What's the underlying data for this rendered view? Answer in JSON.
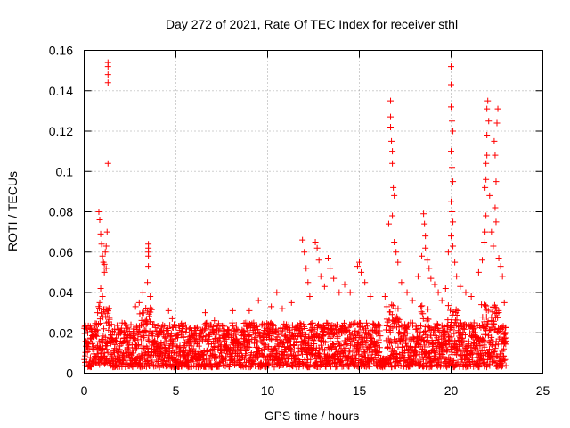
{
  "chart_data": {
    "type": "scatter",
    "title": "Day 272 of 2021, Rate Of TEC Index for receiver sthl",
    "xlabel": "GPS time / hours",
    "ylabel": "ROTI / TECUs",
    "xlim": [
      0,
      25
    ],
    "ylim": [
      0,
      0.16
    ],
    "xticks": [
      0,
      5,
      10,
      15,
      20,
      25
    ],
    "xtick_labels": [
      "0",
      "5",
      "10",
      "15",
      "20",
      "25"
    ],
    "yticks": [
      0,
      0.02,
      0.04,
      0.06,
      0.08,
      0.1,
      0.12,
      0.14,
      0.16
    ],
    "ytick_labels": [
      "0",
      "0.02",
      "0.04",
      "0.06",
      "0.08",
      "0.1",
      "0.12",
      "0.14",
      "0.16"
    ],
    "grid": true,
    "marker": "+",
    "color": "#ff0000",
    "data_range_x": [
      0,
      23
    ],
    "baseline_band": [
      0.003,
      0.025
    ],
    "series": [
      {
        "name": "ROTI",
        "points": [
          [
            0.8,
            0.08
          ],
          [
            0.85,
            0.076
          ],
          [
            0.9,
            0.069
          ],
          [
            0.95,
            0.064
          ],
          [
            1.0,
            0.058
          ],
          [
            1.05,
            0.055
          ],
          [
            1.1,
            0.054
          ],
          [
            1.15,
            0.06
          ],
          [
            1.2,
            0.063
          ],
          [
            1.25,
            0.07
          ],
          [
            1.3,
            0.154
          ],
          [
            1.3,
            0.152
          ],
          [
            1.3,
            0.148
          ],
          [
            1.3,
            0.144
          ],
          [
            1.3,
            0.104
          ],
          [
            1.2,
            0.052
          ],
          [
            1.1,
            0.05
          ],
          [
            0.9,
            0.042
          ],
          [
            1.0,
            0.038
          ],
          [
            0.85,
            0.035
          ],
          [
            3.2,
            0.04
          ],
          [
            3.0,
            0.035
          ],
          [
            3.5,
            0.064
          ],
          [
            3.5,
            0.062
          ],
          [
            3.5,
            0.06
          ],
          [
            3.5,
            0.058
          ],
          [
            3.5,
            0.053
          ],
          [
            3.45,
            0.045
          ],
          [
            3.6,
            0.038
          ],
          [
            2.8,
            0.033
          ],
          [
            4.6,
            0.031
          ],
          [
            4.8,
            0.027
          ],
          [
            6.6,
            0.03
          ],
          [
            7.1,
            0.026
          ],
          [
            8.1,
            0.031
          ],
          [
            9.0,
            0.031
          ],
          [
            9.5,
            0.036
          ],
          [
            10.2,
            0.033
          ],
          [
            10.5,
            0.04
          ],
          [
            10.8,
            0.032
          ],
          [
            11.3,
            0.035
          ],
          [
            11.9,
            0.066
          ],
          [
            12.0,
            0.06
          ],
          [
            12.1,
            0.052
          ],
          [
            12.2,
            0.045
          ],
          [
            12.3,
            0.038
          ],
          [
            12.6,
            0.065
          ],
          [
            12.7,
            0.062
          ],
          [
            12.8,
            0.056
          ],
          [
            12.9,
            0.048
          ],
          [
            13.1,
            0.043
          ],
          [
            13.3,
            0.057
          ],
          [
            13.4,
            0.052
          ],
          [
            13.6,
            0.047
          ],
          [
            13.9,
            0.04
          ],
          [
            14.2,
            0.044
          ],
          [
            14.5,
            0.04
          ],
          [
            14.9,
            0.053
          ],
          [
            15.0,
            0.055
          ],
          [
            15.1,
            0.05
          ],
          [
            15.3,
            0.045
          ],
          [
            15.6,
            0.038
          ],
          [
            16.4,
            0.038
          ],
          [
            16.5,
            0.033
          ],
          [
            16.6,
            0.074
          ],
          [
            16.7,
            0.135
          ],
          [
            16.7,
            0.127
          ],
          [
            16.7,
            0.122
          ],
          [
            16.75,
            0.115
          ],
          [
            16.8,
            0.11
          ],
          [
            16.8,
            0.104
          ],
          [
            16.85,
            0.092
          ],
          [
            16.9,
            0.088
          ],
          [
            16.8,
            0.078
          ],
          [
            16.9,
            0.065
          ],
          [
            17.0,
            0.06
          ],
          [
            17.1,
            0.055
          ],
          [
            17.3,
            0.045
          ],
          [
            17.6,
            0.04
          ],
          [
            17.9,
            0.036
          ],
          [
            18.2,
            0.048
          ],
          [
            18.4,
            0.058
          ],
          [
            18.5,
            0.079
          ],
          [
            18.55,
            0.074
          ],
          [
            18.6,
            0.068
          ],
          [
            18.6,
            0.062
          ],
          [
            18.7,
            0.056
          ],
          [
            18.8,
            0.052
          ],
          [
            18.9,
            0.047
          ],
          [
            19.1,
            0.044
          ],
          [
            19.3,
            0.04
          ],
          [
            19.5,
            0.036
          ],
          [
            19.7,
            0.042
          ],
          [
            19.85,
            0.06
          ],
          [
            20.0,
            0.152
          ],
          [
            20.0,
            0.143
          ],
          [
            20.0,
            0.132
          ],
          [
            20.05,
            0.125
          ],
          [
            20.1,
            0.12
          ],
          [
            20.0,
            0.11
          ],
          [
            20.05,
            0.102
          ],
          [
            20.1,
            0.095
          ],
          [
            20.0,
            0.085
          ],
          [
            20.05,
            0.08
          ],
          [
            20.1,
            0.075
          ],
          [
            20.0,
            0.068
          ],
          [
            20.1,
            0.063
          ],
          [
            20.2,
            0.055
          ],
          [
            20.3,
            0.048
          ],
          [
            20.5,
            0.043
          ],
          [
            20.8,
            0.04
          ],
          [
            21.1,
            0.038
          ],
          [
            21.5,
            0.05
          ],
          [
            21.7,
            0.056
          ],
          [
            21.8,
            0.065
          ],
          [
            21.85,
            0.07
          ],
          [
            21.9,
            0.078
          ],
          [
            21.85,
            0.092
          ],
          [
            21.9,
            0.096
          ],
          [
            21.9,
            0.104
          ],
          [
            21.95,
            0.108
          ],
          [
            21.95,
            0.118
          ],
          [
            21.95,
            0.131
          ],
          [
            22.0,
            0.135
          ],
          [
            22.05,
            0.125
          ],
          [
            22.1,
            0.088
          ],
          [
            22.2,
            0.07
          ],
          [
            22.3,
            0.063
          ],
          [
            22.35,
            0.115
          ],
          [
            22.4,
            0.108
          ],
          [
            22.45,
            0.095
          ],
          [
            22.4,
            0.082
          ],
          [
            22.45,
            0.075
          ],
          [
            22.5,
            0.124
          ],
          [
            22.55,
            0.131
          ],
          [
            22.6,
            0.057
          ],
          [
            22.7,
            0.053
          ],
          [
            22.8,
            0.048
          ],
          [
            22.9,
            0.035
          ]
        ]
      }
    ]
  }
}
